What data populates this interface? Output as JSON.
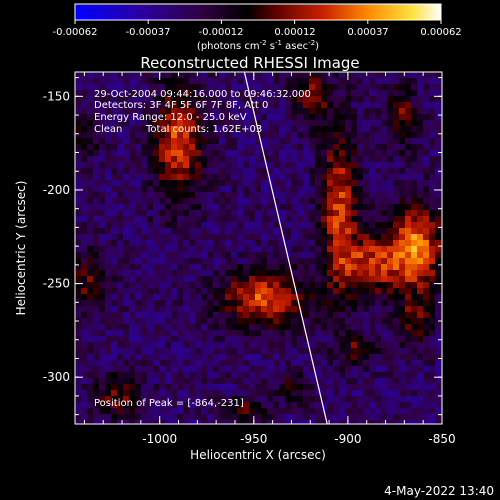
{
  "colorbar": {
    "ticks": [
      "-0.00062",
      "-0.00037",
      "-0.00012",
      "0.00012",
      "0.00037",
      "0.00062"
    ],
    "units_main": "(photons cm",
    "units_exp1": "-2",
    "units_mid": " s",
    "units_exp2": "-1",
    "units_tail": " asec",
    "units_exp3": "-2",
    "units_close": ")",
    "colors": [
      "#0000ff",
      "#2200aa",
      "#330055",
      "#000000",
      "#5a0000",
      "#cc2200",
      "#ff8800",
      "#ffdd33",
      "#ffffff"
    ]
  },
  "header": {
    "line1": "29-Oct-2004 09:44:16.000 to 09:46:32.000",
    "line2": "Detectors: 3F 4F 5F 6F 7F 8F, Att 0",
    "line3": "Energy Range: 12.0 - 25.0 keV",
    "line4_label": "Clean",
    "line4_counts": "Total counts: 1.62E+03"
  },
  "peak_label": "Position of Peak = [-864,-231]",
  "footer_date": "4-May-2022 13:40",
  "chart_data": {
    "type": "heatmap",
    "title": "Reconstructed RHESSI Image",
    "xlabel": "Heliocentric X (arcsec)",
    "ylabel": "Heliocentric Y (arcsec)",
    "xlim": [
      -1045,
      -850
    ],
    "ylim": [
      -325,
      -137
    ],
    "xticks": [
      -1000,
      -950,
      -900,
      -850
    ],
    "yticks": [
      -150,
      -200,
      -250,
      -300
    ],
    "xtick_labels": [
      "-1000",
      "-950",
      "-900",
      "-850"
    ],
    "ytick_labels": [
      "-150",
      "-200",
      "-250",
      "-300"
    ],
    "value_range": [
      -0.00062,
      0.00062
    ],
    "peak_position": [
      -864,
      -231
    ],
    "limb_line": [
      [
        -955,
        -137
      ],
      [
        -911,
        -325
      ]
    ],
    "sources": [
      {
        "x": -990,
        "y": -175,
        "sx": 9,
        "sy": 22,
        "amp": 0.0005
      },
      {
        "x": -945,
        "y": -258,
        "sx": 16,
        "sy": 10,
        "amp": 0.00052
      },
      {
        "x": -905,
        "y": -210,
        "sx": 7,
        "sy": 32,
        "amp": 0.00048
      },
      {
        "x": -888,
        "y": -240,
        "sx": 10,
        "sy": 12,
        "amp": 0.00045
      },
      {
        "x": -864,
        "y": -231,
        "sx": 10,
        "sy": 16,
        "amp": 0.00062
      },
      {
        "x": -920,
        "y": -150,
        "sx": 7,
        "sy": 10,
        "amp": 0.00035
      },
      {
        "x": -872,
        "y": -160,
        "sx": 6,
        "sy": 12,
        "amp": 0.00032
      },
      {
        "x": -1022,
        "y": -310,
        "sx": 9,
        "sy": 8,
        "amp": 0.0003
      },
      {
        "x": -955,
        "y": -318,
        "sx": 8,
        "sy": 5,
        "amp": 0.00032
      },
      {
        "x": -895,
        "y": -285,
        "sx": 7,
        "sy": 6,
        "amp": 0.00028
      },
      {
        "x": -864,
        "y": -270,
        "sx": 6,
        "sy": 10,
        "amp": 0.0003
      },
      {
        "x": -1038,
        "y": -250,
        "sx": 7,
        "sy": 12,
        "amp": 0.00028
      },
      {
        "x": -930,
        "y": -305,
        "sx": 6,
        "sy": 6,
        "amp": 0.00022
      },
      {
        "x": -1040,
        "y": -170,
        "sx": 6,
        "sy": 10,
        "amp": 0.0002
      }
    ],
    "background_level": -0.00025
  }
}
